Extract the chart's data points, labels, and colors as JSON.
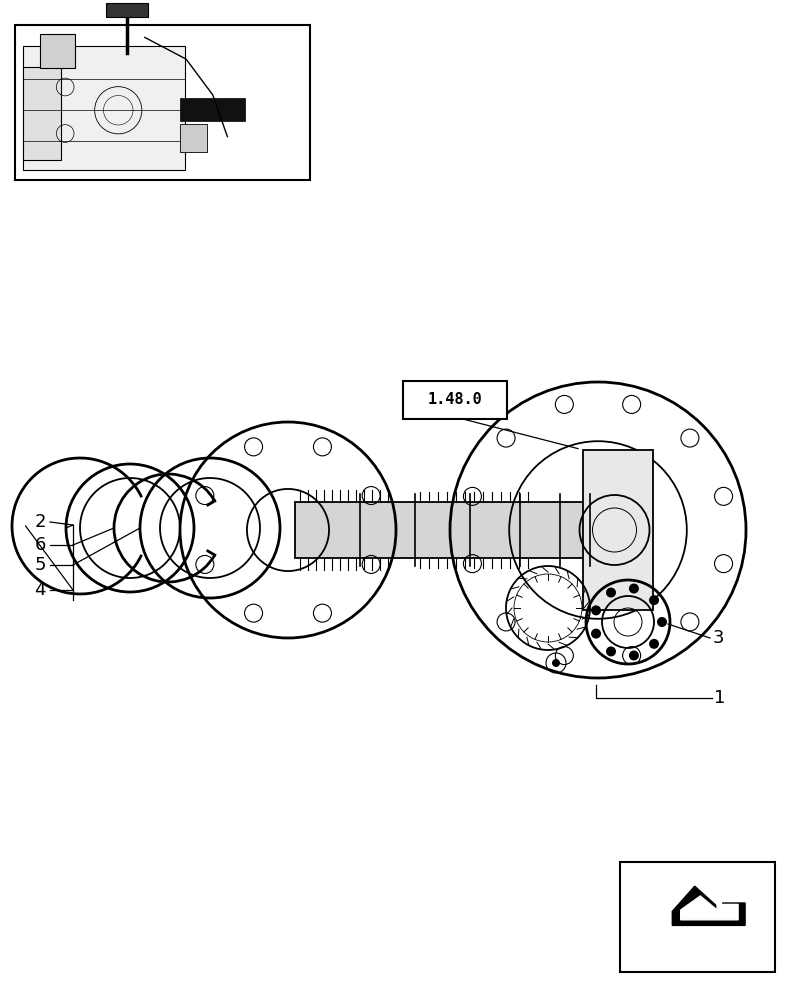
{
  "bg_color": "#ffffff",
  "line_color": "#000000",
  "fig_width": 8.08,
  "fig_height": 10.0,
  "dpi": 100,
  "reference_label": "1.48.0"
}
